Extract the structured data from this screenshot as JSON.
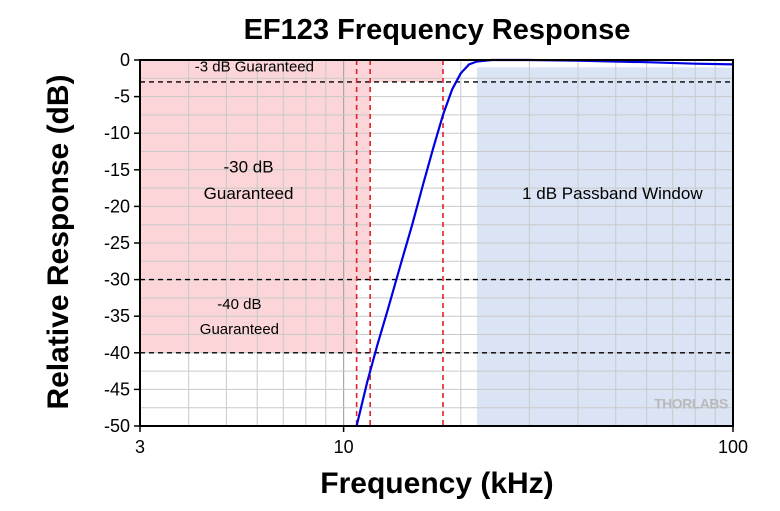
{
  "chart_data": {
    "type": "line",
    "title": "EF123 Frequency Response",
    "xlabel": "Frequency (kHz)",
    "ylabel": "Relative Response (dB)",
    "x_scale": "log",
    "xlim": [
      3,
      100
    ],
    "ylim": [
      -50,
      0
    ],
    "x_ticks": [
      3,
      10,
      100
    ],
    "y_ticks": [
      0,
      -5,
      -10,
      -15,
      -20,
      -25,
      -30,
      -35,
      -40,
      -45,
      -50
    ],
    "grid": true,
    "series": [
      {
        "color": "#0000e0",
        "x": [
          10.8,
          11.5,
          12.2,
          13.0,
          14.0,
          15.0,
          16.0,
          17.0,
          18.0,
          19.0,
          20.0,
          21.0,
          22.0,
          24.0,
          30.0,
          40.0,
          60.0,
          80.0,
          100.0
        ],
        "y": [
          -50,
          -44,
          -39,
          -34,
          -28,
          -22.5,
          -17,
          -12,
          -7.5,
          -4,
          -1.8,
          -0.6,
          -0.2,
          0,
          0,
          -0.1,
          -0.3,
          -0.5,
          -0.6
        ]
      }
    ],
    "regions": [
      {
        "label": "-3 dB Guaranteed",
        "x": [
          3,
          18
        ],
        "y": [
          -3,
          0
        ],
        "color": "#fbd5d8"
      },
      {
        "label": "-30 dB Guaranteed",
        "x": [
          3,
          11.7
        ],
        "y": [
          -30,
          -3
        ],
        "color": "#fbd5d8"
      },
      {
        "label": "-40 dB Guaranteed",
        "x": [
          3,
          10.8
        ],
        "y": [
          -40,
          -30
        ],
        "color": "#fbd5d8"
      },
      {
        "label": "1 dB Passband Window",
        "x": [
          22,
          100
        ],
        "y": [
          -50,
          -1
        ],
        "color": "#dbe4f5"
      }
    ],
    "reference_lines": {
      "horizontal_db": [
        -3,
        -30,
        -40
      ],
      "vertical_khz": [
        10.8,
        11.7,
        18
      ]
    },
    "annotations": {
      "minus3": "-3 dB Guaranteed",
      "minus30_line1": "-30 dB",
      "minus30_line2": "Guaranteed",
      "minus40_line1": "-40 dB",
      "minus40_line2": "Guaranteed",
      "passband": "1 dB Passband Window"
    },
    "watermark": "THORLABS"
  }
}
